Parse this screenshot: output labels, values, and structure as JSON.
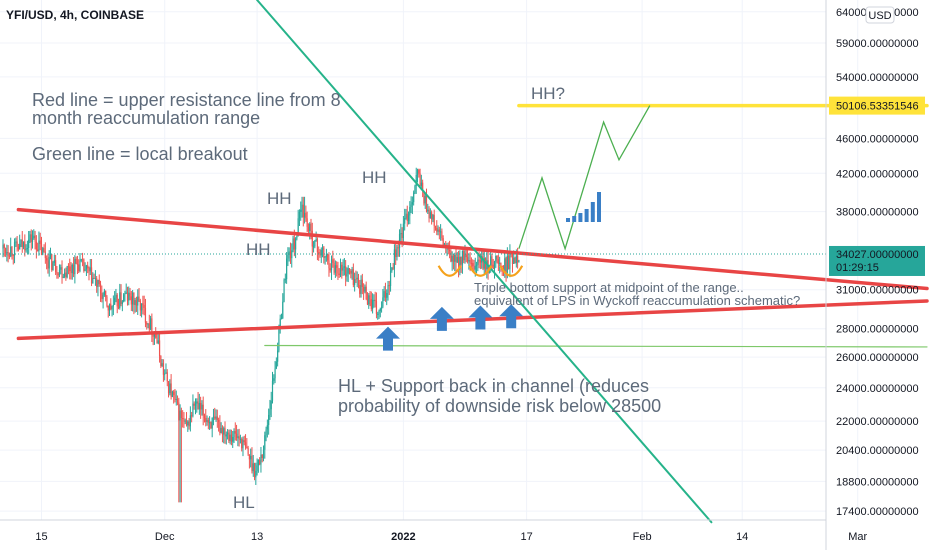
{
  "header": {
    "symbol_line": "YFI/USD, 4h, COINBASE",
    "currency_button": "USD"
  },
  "colors": {
    "up": "#26a69a",
    "down": "#ef5350",
    "resistance": "#e84545",
    "trend": "#26b38a",
    "support": "#7ec86a",
    "target": "#ffe33a",
    "projection": "#4caf50",
    "arrow": "#3a7fc6",
    "cup": "#f5a21b",
    "price_tag_bg": "#26a69a",
    "target_tag_bg": "#ffe33a"
  },
  "chart_data": {
    "type": "candlestick",
    "title": "YFI/USD, 4h, COINBASE",
    "y_unit": "USD",
    "yscale": "log",
    "ylim": [
      17000,
      66000
    ],
    "y_ticks": [
      {
        "value": 17400,
        "label": "17400.00000000"
      },
      {
        "value": 18800,
        "label": "18800.00000000"
      },
      {
        "value": 20400,
        "label": "20400.00000000"
      },
      {
        "value": 22000,
        "label": "22000.00000000"
      },
      {
        "value": 24000,
        "label": "24000.00000000"
      },
      {
        "value": 26000,
        "label": "26000.00000000"
      },
      {
        "value": 28000,
        "label": "28000.00000000"
      },
      {
        "value": 31000,
        "label": "31000.00000000"
      },
      {
        "value": 38000,
        "label": "38000.00000000"
      },
      {
        "value": 42000,
        "label": "42000.00000000"
      },
      {
        "value": 46000,
        "label": "46000.00000000"
      },
      {
        "value": 54000,
        "label": "54000.00000000"
      },
      {
        "value": 59000,
        "label": "59000.00000000"
      },
      {
        "value": 64000,
        "label": "64000.00000000"
      }
    ],
    "x_ticks": [
      {
        "date": "2021-11-15",
        "label": "15"
      },
      {
        "date": "2021-12-01",
        "label": "Dec"
      },
      {
        "date": "2021-12-13",
        "label": "13"
      },
      {
        "date": "2022-01-01",
        "label": "2022"
      },
      {
        "date": "2022-01-17",
        "label": "17"
      },
      {
        "date": "2022-02-01",
        "label": "Feb"
      },
      {
        "date": "2022-02-14",
        "label": "14"
      },
      {
        "date": "2022-03-01",
        "label": "Mar"
      }
    ],
    "last_price": {
      "value": 34027,
      "label": "34027.00000000",
      "countdown": "01:29:15"
    },
    "target_level": {
      "value": 50106.53351546,
      "label": "50106.53351546"
    },
    "series": [
      {
        "x": "2021-11-12",
        "close": 34500
      },
      {
        "x": "2021-11-14",
        "close": 35500
      },
      {
        "x": "2021-11-16",
        "close": 33500
      },
      {
        "x": "2021-11-18",
        "close": 32500
      },
      {
        "x": "2021-11-20",
        "close": 33200
      },
      {
        "x": "2021-11-22",
        "close": 31800
      },
      {
        "x": "2021-11-24",
        "close": 29500
      },
      {
        "x": "2021-11-26",
        "close": 30500
      },
      {
        "x": "2021-11-28",
        "close": 29800
      },
      {
        "x": "2021-11-30",
        "close": 27500
      },
      {
        "x": "2021-12-01",
        "close": 25000
      },
      {
        "x": "2021-12-03",
        "close": 22500
      },
      {
        "x": "2021-12-04",
        "close": 21500
      },
      {
        "x": "2021-12-05",
        "close": 23000
      },
      {
        "x": "2021-12-07",
        "close": 22000
      },
      {
        "x": "2021-12-09",
        "close": 21500
      },
      {
        "x": "2021-12-11",
        "close": 21000
      },
      {
        "x": "2021-12-13",
        "close": 19300
      },
      {
        "x": "2021-12-14",
        "close": 20500
      },
      {
        "x": "2021-12-15",
        "close": 23500
      },
      {
        "x": "2021-12-16",
        "close": 27500
      },
      {
        "x": "2021-12-17",
        "close": 33500
      },
      {
        "x": "2021-12-18",
        "close": 35000
      },
      {
        "x": "2021-12-19",
        "close": 38500
      },
      {
        "x": "2021-12-20",
        "close": 36000
      },
      {
        "x": "2021-12-21",
        "close": 34500
      },
      {
        "x": "2021-12-23",
        "close": 33000
      },
      {
        "x": "2021-12-25",
        "close": 32500
      },
      {
        "x": "2021-12-27",
        "close": 31000
      },
      {
        "x": "2021-12-28",
        "close": 30000
      },
      {
        "x": "2021-12-29",
        "close": 29000
      },
      {
        "x": "2021-12-30",
        "close": 31000
      },
      {
        "x": "2021-12-31",
        "close": 34000
      },
      {
        "x": "2022-01-01",
        "close": 36000
      },
      {
        "x": "2022-01-02",
        "close": 38500
      },
      {
        "x": "2022-01-03",
        "close": 42000
      },
      {
        "x": "2022-01-04",
        "close": 39000
      },
      {
        "x": "2022-01-05",
        "close": 37000
      },
      {
        "x": "2022-01-06",
        "close": 35500
      },
      {
        "x": "2022-01-07",
        "close": 34000
      },
      {
        "x": "2022-01-08",
        "close": 33200
      },
      {
        "x": "2022-01-09",
        "close": 33800
      },
      {
        "x": "2022-01-10",
        "close": 32600
      },
      {
        "x": "2022-01-11",
        "close": 33500
      },
      {
        "x": "2022-01-12",
        "close": 32800
      },
      {
        "x": "2022-01-13",
        "close": 33600
      },
      {
        "x": "2022-01-14",
        "close": 32700
      },
      {
        "x": "2022-01-15",
        "close": 33500
      },
      {
        "x": "2022-01-16",
        "close": 34027
      }
    ],
    "annotations": [
      {
        "id": "note_red",
        "text": "Red line = upper resistance line from 8"
      },
      {
        "id": "note_red2",
        "text": "month reaccumulation range"
      },
      {
        "id": "note_green",
        "text": "Green line = local breakout"
      },
      {
        "id": "hh1",
        "text": "HH"
      },
      {
        "id": "hh2",
        "text": "HH"
      },
      {
        "id": "hh3",
        "text": "HH"
      },
      {
        "id": "hh4",
        "text": "HH?"
      },
      {
        "id": "hl",
        "text": "HL"
      },
      {
        "id": "triple1",
        "text": "Triple bottom support at midpoint of the range.."
      },
      {
        "id": "triple2",
        "text": "equivalent of LPS in Wyckoff reaccumulation schematic?"
      },
      {
        "id": "hlsup1",
        "text": "HL + Support back in channel (reduces"
      },
      {
        "id": "hlsup2",
        "text": "probability of downside risk below 28500"
      }
    ],
    "lines": {
      "resistance": [
        {
          "x": "2021-11-12",
          "y": 38200
        },
        {
          "x": "2022-03-10",
          "y": 31100
        }
      ],
      "channel_support": [
        {
          "x": "2021-11-12",
          "y": 27300
        },
        {
          "x": "2022-03-10",
          "y": 30100
        }
      ],
      "breakout_trend": [
        {
          "x": "2021-12-13",
          "y": 66000
        },
        {
          "x": "2022-02-10",
          "y": 16900
        }
      ],
      "horizontal_support": [
        {
          "x": "2021-12-14",
          "y": 26800
        },
        {
          "x": "2022-03-10",
          "y": 26700
        }
      ],
      "target_line": [
        {
          "x": "2022-01-16",
          "y": 50106.53351546
        },
        {
          "x": "2022-03-10",
          "y": 50106.53351546
        }
      ],
      "projection": [
        {
          "x": "2022-01-16",
          "y": 34500
        },
        {
          "x": "2022-01-19",
          "y": 41500
        },
        {
          "x": "2022-01-22",
          "y": 34500
        },
        {
          "x": "2022-01-27",
          "y": 48000
        },
        {
          "x": "2022-01-29",
          "y": 43500
        },
        {
          "x": "2022-02-02",
          "y": 50106.53351546
        }
      ]
    }
  }
}
